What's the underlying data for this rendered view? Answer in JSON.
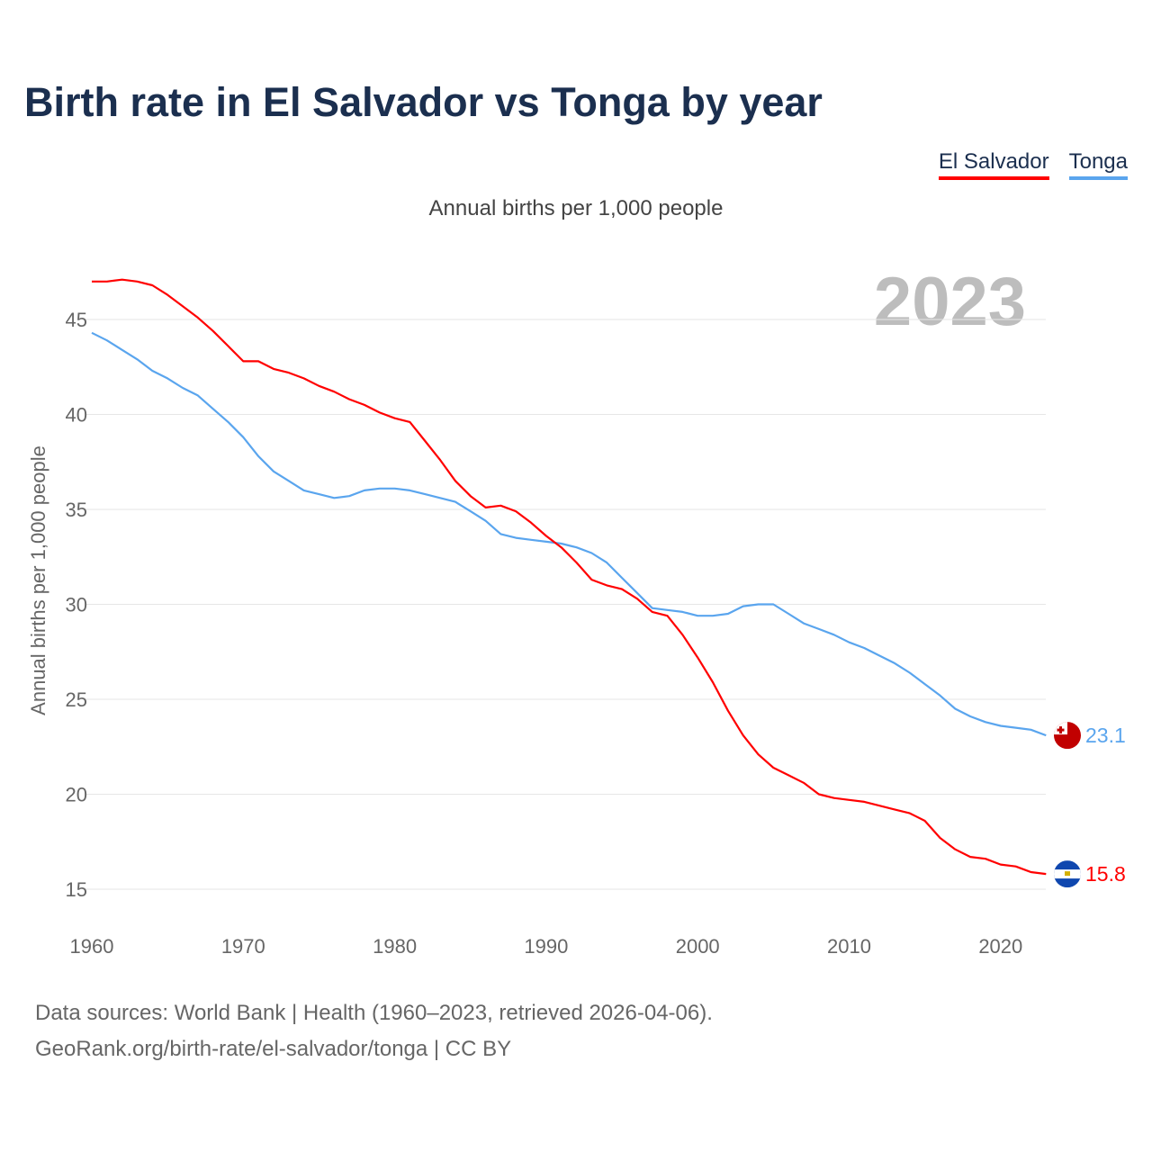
{
  "title": "Birth rate in El Salvador vs Tonga by year",
  "year_label": "2023",
  "footer": {
    "line1": "Data sources: World Bank | Health (1960–2023, retrieved 2026-04-06).",
    "line2": "GeoRank.org/birth-rate/el-salvador/tonga | CC BY"
  },
  "chart_data": {
    "type": "line",
    "title": "Birth rate in El Salvador vs Tonga by year",
    "subtitle": "Annual births per 1,000 people",
    "xlabel": "",
    "ylabel": "Annual births per 1,000 people",
    "xlim": [
      1960,
      2023
    ],
    "ylim": [
      13.5,
      47.5
    ],
    "xticks": [
      1960,
      1970,
      1980,
      1990,
      2000,
      2010,
      2020
    ],
    "yticks": [
      15,
      20,
      25,
      30,
      35,
      40,
      45
    ],
    "grid": true,
    "legend_position": "top-right",
    "x": [
      1960,
      1961,
      1962,
      1963,
      1964,
      1965,
      1966,
      1967,
      1968,
      1969,
      1970,
      1971,
      1972,
      1973,
      1974,
      1975,
      1976,
      1977,
      1978,
      1979,
      1980,
      1981,
      1982,
      1983,
      1984,
      1985,
      1986,
      1987,
      1988,
      1989,
      1990,
      1991,
      1992,
      1993,
      1994,
      1995,
      1996,
      1997,
      1998,
      1999,
      2000,
      2001,
      2002,
      2003,
      2004,
      2005,
      2006,
      2007,
      2008,
      2009,
      2010,
      2011,
      2012,
      2013,
      2014,
      2015,
      2016,
      2017,
      2018,
      2019,
      2020,
      2021,
      2022,
      2023
    ],
    "series": [
      {
        "name": "El Salvador",
        "color": "#ff0000",
        "end_label": "15.8",
        "flag": "el-salvador",
        "values": [
          47.0,
          47.0,
          47.1,
          47.0,
          46.8,
          46.3,
          45.7,
          45.1,
          44.4,
          43.6,
          42.8,
          42.8,
          42.4,
          42.2,
          41.9,
          41.5,
          41.2,
          40.8,
          40.5,
          40.1,
          39.8,
          39.6,
          38.6,
          37.6,
          36.5,
          35.7,
          35.1,
          35.2,
          34.9,
          34.3,
          33.6,
          33.0,
          32.2,
          31.3,
          31.0,
          30.8,
          30.3,
          29.6,
          29.4,
          28.4,
          27.2,
          25.9,
          24.4,
          23.1,
          22.1,
          21.4,
          21.0,
          20.6,
          20.0,
          19.8,
          19.7,
          19.6,
          19.4,
          19.2,
          19.0,
          18.6,
          17.7,
          17.1,
          16.7,
          16.6,
          16.3,
          16.2,
          15.9,
          15.8
        ]
      },
      {
        "name": "Tonga",
        "color": "#5aa5ee",
        "end_label": "23.1",
        "flag": "tonga",
        "values": [
          44.3,
          43.9,
          43.4,
          42.9,
          42.3,
          41.9,
          41.4,
          41.0,
          40.3,
          39.6,
          38.8,
          37.8,
          37.0,
          36.5,
          36.0,
          35.8,
          35.6,
          35.7,
          36.0,
          36.1,
          36.1,
          36.0,
          35.8,
          35.6,
          35.4,
          34.9,
          34.4,
          33.7,
          33.5,
          33.4,
          33.3,
          33.2,
          33.0,
          32.7,
          32.2,
          31.4,
          30.6,
          29.8,
          29.7,
          29.6,
          29.4,
          29.4,
          29.5,
          29.9,
          30.0,
          30.0,
          29.5,
          29.0,
          28.7,
          28.4,
          28.0,
          27.7,
          27.3,
          26.9,
          26.4,
          25.8,
          25.2,
          24.5,
          24.1,
          23.8,
          23.6,
          23.5,
          23.4,
          23.1
        ]
      }
    ]
  }
}
